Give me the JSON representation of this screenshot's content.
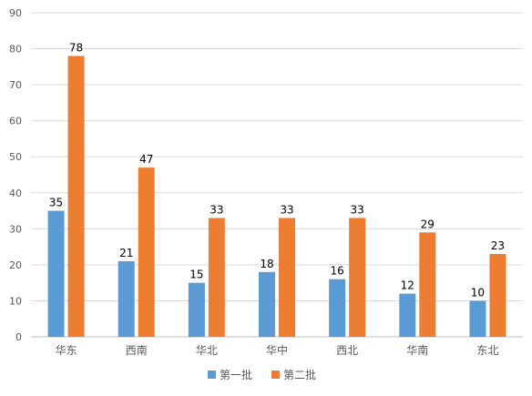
{
  "chart_data": {
    "type": "bar",
    "categories": [
      "华东",
      "西南",
      "华北",
      "华中",
      "西北",
      "华南",
      "东北"
    ],
    "series": [
      {
        "name": "第一批",
        "values": [
          35,
          21,
          15,
          18,
          16,
          12,
          10
        ],
        "color": "#5B9BD5"
      },
      {
        "name": "第二批",
        "values": [
          78,
          47,
          33,
          33,
          33,
          29,
          23
        ],
        "color": "#ED7D31"
      }
    ],
    "title": "",
    "xlabel": "",
    "ylabel": "",
    "ylim": [
      0,
      90
    ],
    "yticks": [
      0,
      10,
      20,
      30,
      40,
      50,
      60,
      70,
      80,
      90
    ],
    "grid": true,
    "legend": "bottom",
    "gridline_color": "#D9D9D9",
    "axis_color": "#BFBFBF"
  }
}
